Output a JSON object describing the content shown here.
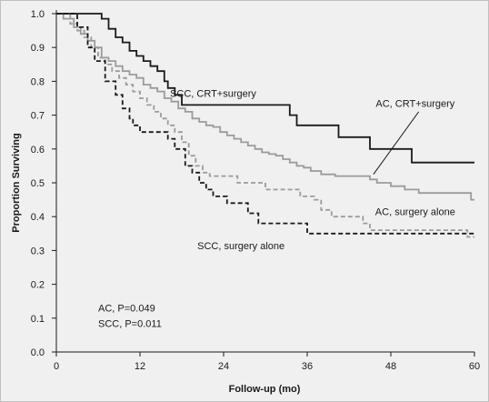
{
  "chart_data": {
    "type": "line",
    "xlabel": "Follow-up (mo)",
    "ylabel": "Proportion Surviving",
    "xlim": [
      0,
      60
    ],
    "ylim": [
      0,
      1.0
    ],
    "xticks": [
      0,
      12,
      24,
      36,
      48,
      60
    ],
    "yticks": [
      0.0,
      0.1,
      0.2,
      0.3,
      0.4,
      0.5,
      0.6,
      0.7,
      0.8,
      0.9,
      1.0
    ],
    "grid": false,
    "step": true,
    "series": [
      {
        "name": "SCC, CRT+surgery",
        "color": "#1a1a1a",
        "dash": "solid",
        "x": [
          0,
          6.5,
          7.5,
          8.5,
          9.5,
          10.5,
          11.5,
          12.5,
          13.5,
          14.5,
          15.5,
          16,
          17,
          18,
          24,
          33.5,
          34.5,
          36,
          40.5,
          45,
          51,
          60
        ],
        "y": [
          1.0,
          0.985,
          0.955,
          0.93,
          0.915,
          0.89,
          0.875,
          0.86,
          0.845,
          0.83,
          0.8,
          0.78,
          0.76,
          0.73,
          0.73,
          0.7,
          0.67,
          0.67,
          0.635,
          0.6,
          0.56,
          0.56
        ]
      },
      {
        "name": "AC, CRT+surgery",
        "color": "#9b9b9b",
        "dash": "solid",
        "x": [
          0,
          1,
          2.5,
          3.5,
          4.5,
          5.5,
          6.5,
          7.5,
          8.5,
          9.5,
          10.5,
          11.5,
          12.5,
          13.5,
          14.5,
          15.5,
          16.5,
          17.5,
          18.5,
          19.5,
          20.5,
          21.5,
          22.5,
          23.5,
          24.5,
          25.5,
          26.5,
          27.5,
          28.5,
          29.5,
          30.5,
          31.5,
          32.5,
          33.5,
          34.5,
          35.5,
          36.5,
          38,
          40,
          45,
          46,
          48,
          50,
          52,
          55,
          59.5,
          60
        ],
        "y": [
          1.0,
          0.985,
          0.96,
          0.94,
          0.92,
          0.9,
          0.87,
          0.86,
          0.845,
          0.83,
          0.82,
          0.81,
          0.79,
          0.78,
          0.77,
          0.75,
          0.74,
          0.72,
          0.71,
          0.69,
          0.68,
          0.67,
          0.665,
          0.65,
          0.64,
          0.63,
          0.62,
          0.61,
          0.6,
          0.59,
          0.585,
          0.58,
          0.57,
          0.56,
          0.55,
          0.545,
          0.535,
          0.525,
          0.52,
          0.51,
          0.5,
          0.49,
          0.48,
          0.47,
          0.47,
          0.45,
          0.45
        ]
      },
      {
        "name": "AC, surgery alone",
        "color": "#9b9b9b",
        "dash": "dashed",
        "x": [
          0,
          2,
          3,
          4,
          5,
          6,
          7,
          8,
          9,
          10,
          11,
          12,
          13,
          14,
          15,
          16,
          17,
          18,
          19,
          20,
          21,
          22,
          26,
          30,
          35,
          37,
          38,
          39.5,
          44,
          45,
          51,
          59,
          60
        ],
        "y": [
          1.0,
          0.97,
          0.95,
          0.93,
          0.9,
          0.87,
          0.85,
          0.83,
          0.81,
          0.79,
          0.77,
          0.75,
          0.73,
          0.71,
          0.69,
          0.67,
          0.65,
          0.62,
          0.58,
          0.55,
          0.53,
          0.52,
          0.5,
          0.48,
          0.46,
          0.45,
          0.42,
          0.4,
          0.38,
          0.36,
          0.36,
          0.34,
          0.34
        ]
      },
      {
        "name": "SCC, surgery alone",
        "color": "#1a1a1a",
        "dash": "dashed",
        "x": [
          0,
          3,
          4.5,
          5.5,
          7,
          8.5,
          9.5,
          10.5,
          11,
          12,
          16,
          17,
          18.5,
          19.5,
          20.5,
          21.5,
          22.5,
          24.5,
          27.5,
          29,
          36,
          60
        ],
        "y": [
          1.0,
          0.96,
          0.9,
          0.86,
          0.8,
          0.76,
          0.72,
          0.69,
          0.67,
          0.65,
          0.63,
          0.6,
          0.55,
          0.53,
          0.5,
          0.48,
          0.46,
          0.44,
          0.41,
          0.38,
          0.35,
          0.35
        ]
      }
    ],
    "annotations": [
      {
        "text": "SCC, CRT+surgery",
        "at": [
          22.5,
          0.765
        ]
      },
      {
        "text": "AC, CRT+surgery",
        "at": [
          51.5,
          0.735
        ]
      },
      {
        "text": "AC, surgery alone",
        "at": [
          51.5,
          0.415
        ]
      },
      {
        "text": "SCC, surgery alone",
        "at": [
          26.5,
          0.315
        ]
      }
    ],
    "leader_line": {
      "from": [
        52,
        0.71
      ],
      "to": [
        45.5,
        0.525
      ]
    },
    "stats": [
      {
        "text": "AC, P=0.049",
        "at": [
          6,
          0.13
        ]
      },
      {
        "text": "SCC, P=0.011",
        "at": [
          6,
          0.085
        ]
      }
    ]
  }
}
